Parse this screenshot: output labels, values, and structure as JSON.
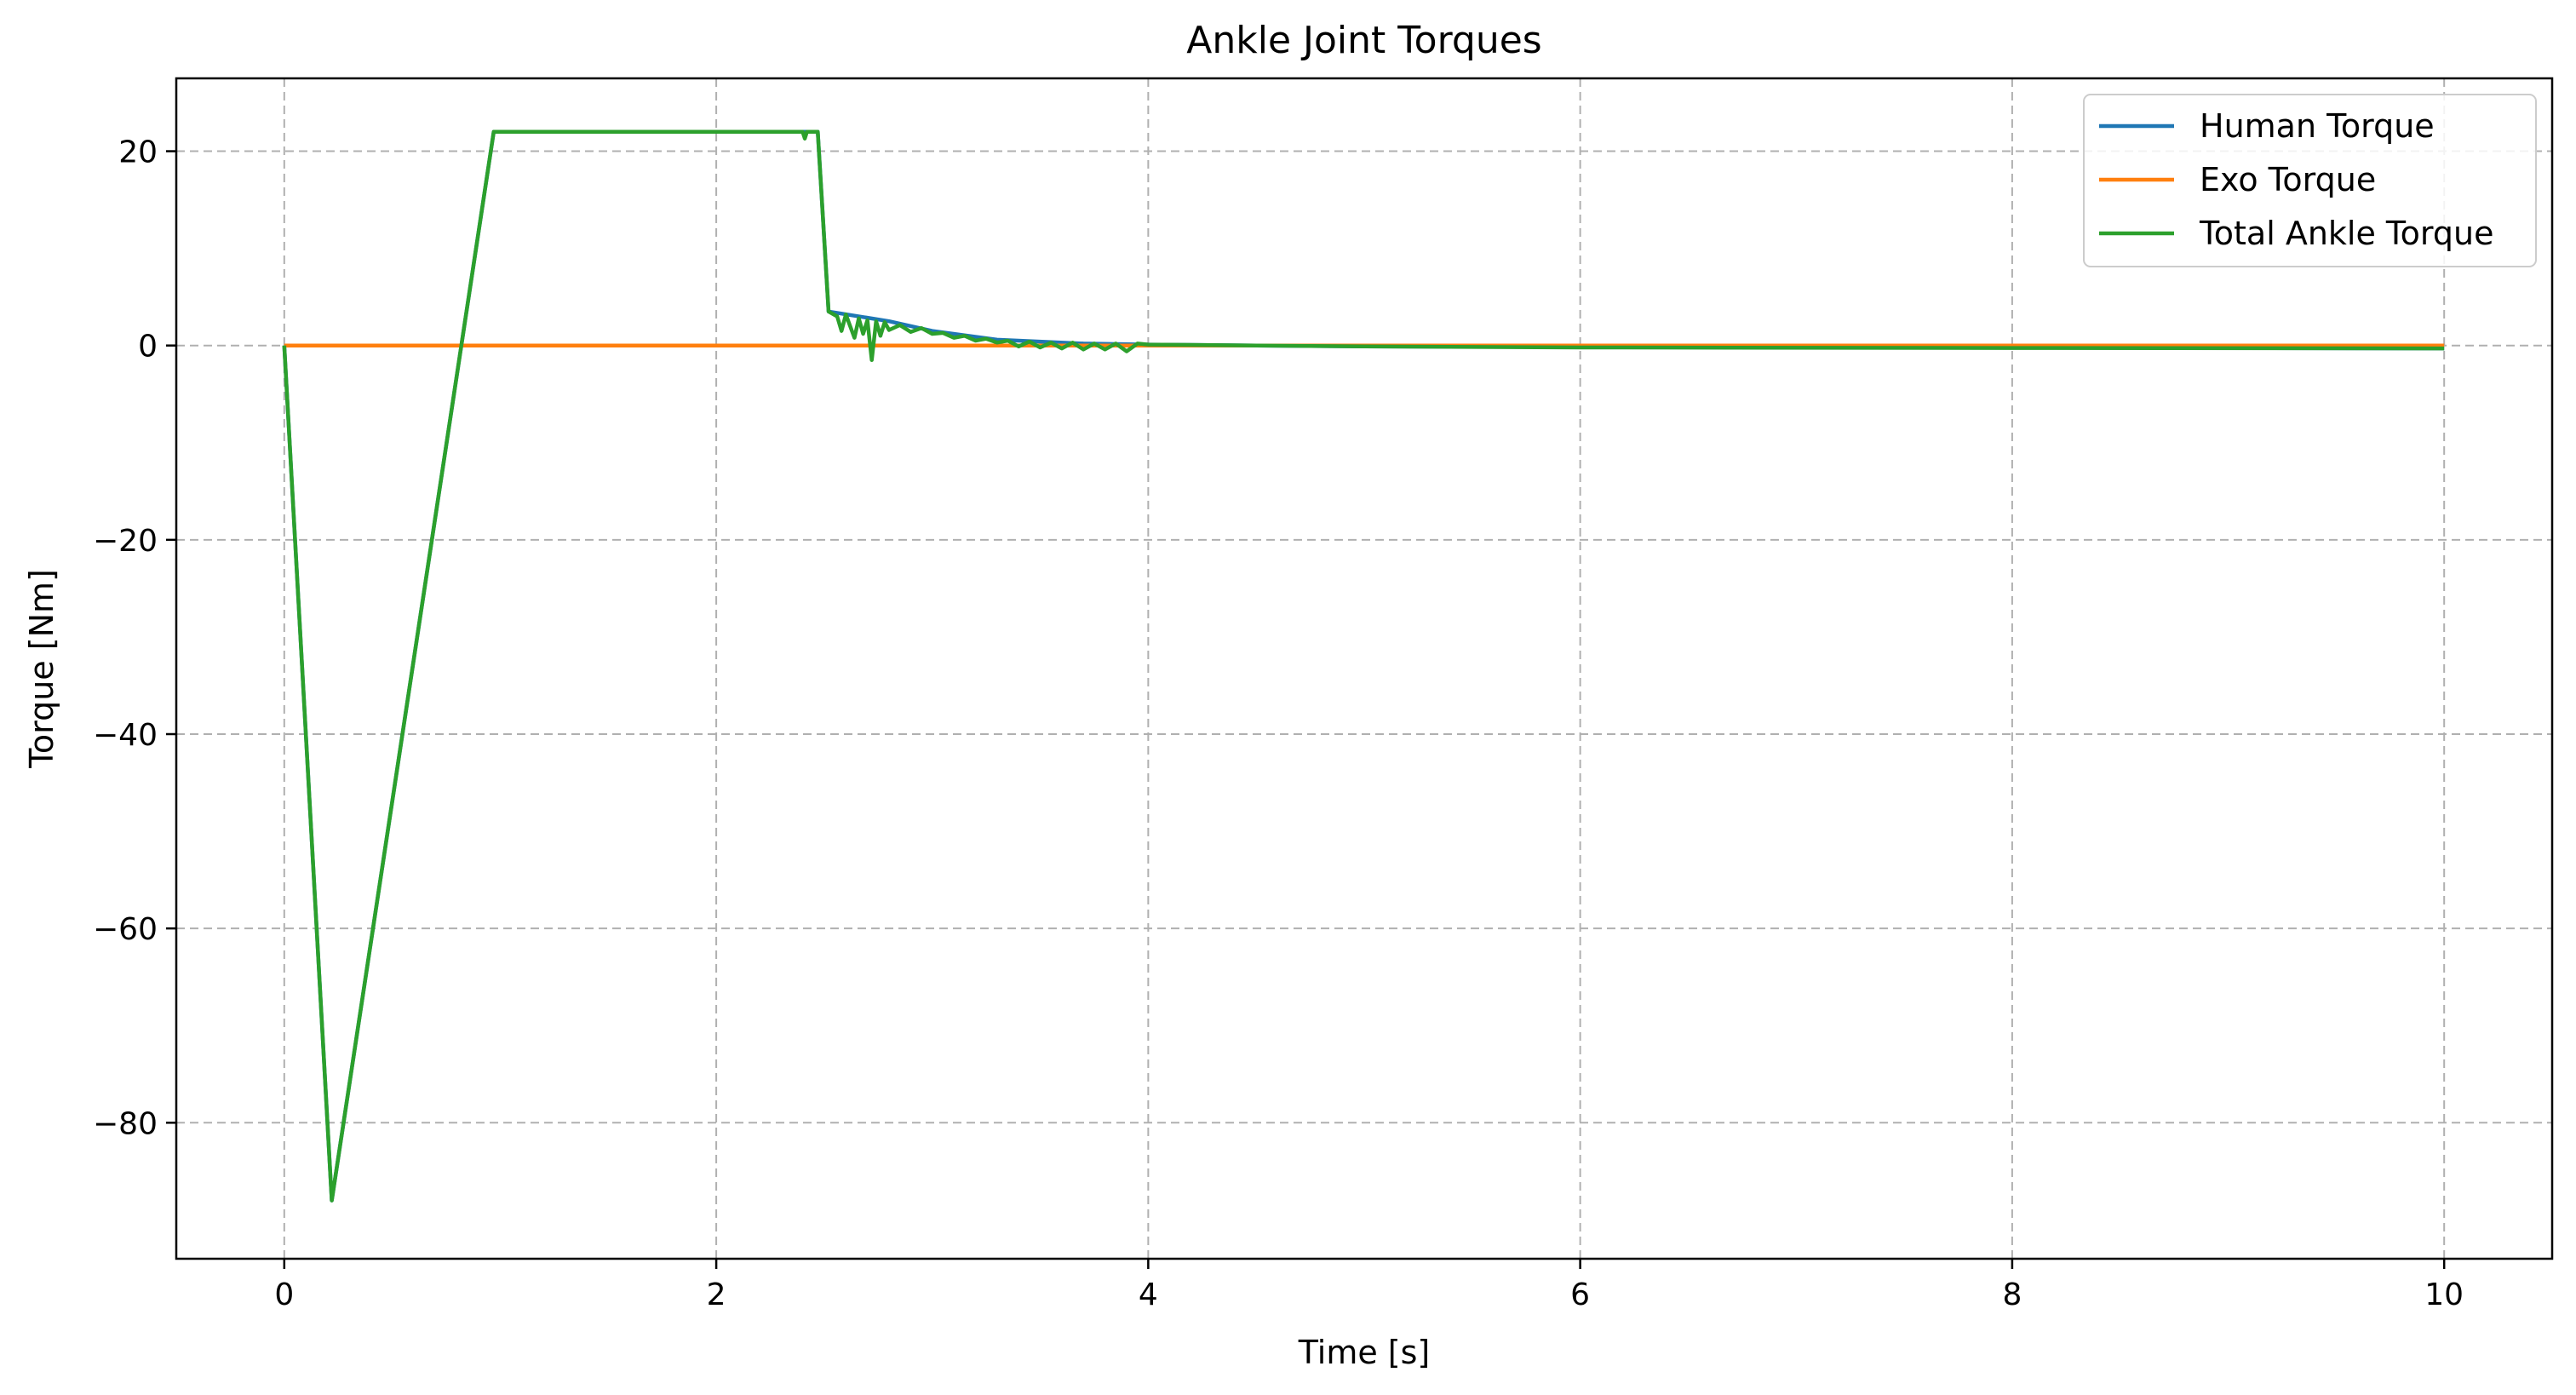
{
  "chart_data": {
    "type": "line",
    "title": "Ankle Joint Torques",
    "xlabel": "Time [s]",
    "ylabel": "Torque [Nm]",
    "xlim": [
      -0.5,
      10.5
    ],
    "ylim": [
      -94,
      27.5
    ],
    "xticks": [
      0,
      2,
      4,
      6,
      8,
      10
    ],
    "xtick_labels": [
      "0",
      "2",
      "4",
      "6",
      "8",
      "10"
    ],
    "yticks": [
      20,
      0,
      -20,
      -40,
      -60,
      -80
    ],
    "ytick_labels": [
      "20",
      "0",
      "−20",
      "−40",
      "−60",
      "−80"
    ],
    "grid": true,
    "legend_position": "top-right",
    "series": [
      {
        "name": "Human Torque",
        "color": "#1f77b4",
        "points": [
          [
            0,
            0
          ],
          [
            0.22,
            -88
          ],
          [
            0.97,
            22
          ],
          [
            2.47,
            22
          ],
          [
            2.52,
            3.5
          ],
          [
            2.8,
            2.5
          ],
          [
            3.0,
            1.5
          ],
          [
            3.3,
            0.6
          ],
          [
            3.7,
            0.2
          ],
          [
            4.0,
            0.1
          ],
          [
            4.5,
            0.0
          ],
          [
            5.0,
            -0.1
          ],
          [
            10,
            -0.3
          ]
        ]
      },
      {
        "name": "Exo Torque",
        "color": "#ff7f0e",
        "points": [
          [
            0,
            0
          ],
          [
            10,
            0
          ]
        ]
      },
      {
        "name": "Total Ankle Torque",
        "color": "#2ca02c",
        "points": [
          [
            0,
            0
          ],
          [
            0.22,
            -88
          ],
          [
            0.97,
            22
          ],
          [
            2.4,
            22
          ],
          [
            2.41,
            21.3
          ],
          [
            2.42,
            22
          ],
          [
            2.47,
            22
          ],
          [
            2.52,
            3.5
          ],
          [
            2.56,
            3.0
          ],
          [
            2.58,
            1.5
          ],
          [
            2.6,
            3.2
          ],
          [
            2.62,
            2.0
          ],
          [
            2.64,
            0.8
          ],
          [
            2.66,
            2.8
          ],
          [
            2.68,
            1.2
          ],
          [
            2.7,
            2.6
          ],
          [
            2.72,
            -1.5
          ],
          [
            2.74,
            2.5
          ],
          [
            2.76,
            1.0
          ],
          [
            2.78,
            2.4
          ],
          [
            2.8,
            1.6
          ],
          [
            2.85,
            2.1
          ],
          [
            2.9,
            1.4
          ],
          [
            2.95,
            1.8
          ],
          [
            3.0,
            1.2
          ],
          [
            3.05,
            1.3
          ],
          [
            3.1,
            0.8
          ],
          [
            3.15,
            1.0
          ],
          [
            3.2,
            0.5
          ],
          [
            3.25,
            0.7
          ],
          [
            3.3,
            0.3
          ],
          [
            3.35,
            0.5
          ],
          [
            3.4,
            -0.1
          ],
          [
            3.45,
            0.4
          ],
          [
            3.5,
            -0.2
          ],
          [
            3.55,
            0.3
          ],
          [
            3.6,
            -0.3
          ],
          [
            3.65,
            0.3
          ],
          [
            3.7,
            -0.4
          ],
          [
            3.75,
            0.2
          ],
          [
            3.8,
            -0.4
          ],
          [
            3.85,
            0.2
          ],
          [
            3.9,
            -0.6
          ],
          [
            3.95,
            0.2
          ],
          [
            4.0,
            0.1
          ],
          [
            4.5,
            0.0
          ],
          [
            5.0,
            -0.1
          ],
          [
            6.0,
            -0.2
          ],
          [
            8.0,
            -0.25
          ],
          [
            10,
            -0.3
          ]
        ]
      }
    ]
  }
}
